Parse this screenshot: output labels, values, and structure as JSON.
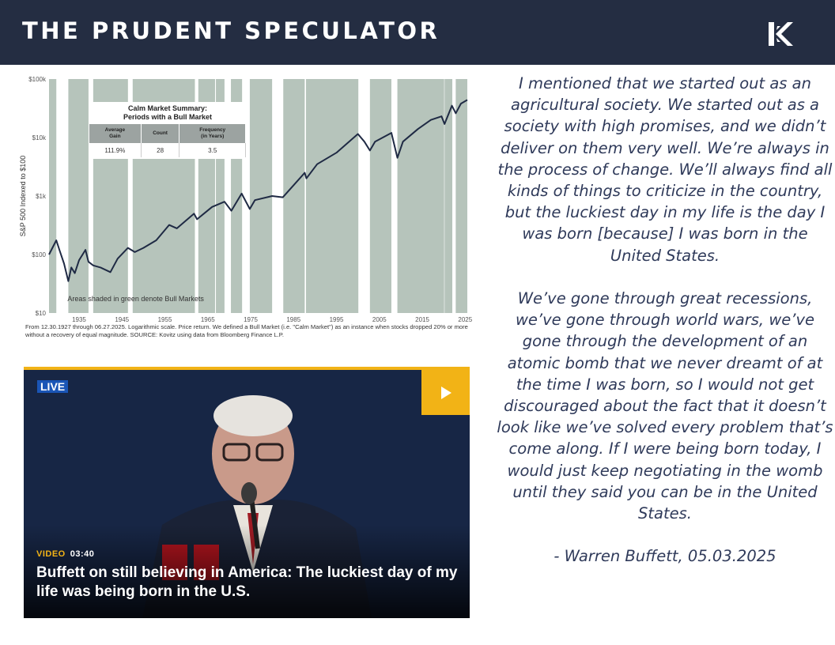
{
  "header": {
    "brand": "THE PRUDENT SPECULATOR",
    "logo_icon": "kovitz-k-logo-icon"
  },
  "chart_data": {
    "type": "line",
    "ylabel": "S&P 500 Indexed to $100",
    "yscale": "log",
    "ylim": [
      10,
      100000
    ],
    "ytick_labels": [
      "$10",
      "$100",
      "$1k",
      "$10k",
      "$100k"
    ],
    "ytick_values": [
      10,
      100,
      1000,
      10000,
      100000
    ],
    "xlim": [
      1928,
      2025.5
    ],
    "xtick_labels": [
      "1935",
      "1945",
      "1955",
      "1965",
      "1975",
      "1985",
      "1995",
      "2005",
      "2015",
      "2025"
    ],
    "xtick_values": [
      1935,
      1945,
      1955,
      1965,
      1975,
      1985,
      1995,
      2005,
      2015,
      2025
    ],
    "series": [
      {
        "x": [
          1928,
          1929.7,
          1930.5,
          1931.5,
          1932.5,
          1933.2,
          1934,
          1935,
          1936.5,
          1937.2,
          1938.3,
          1940,
          1942.3,
          1944,
          1946.4,
          1948,
          1950,
          1953,
          1956,
          1957.8,
          1961.8,
          1962.5,
          1966,
          1968.9,
          1970.5,
          1972.9,
          1974.8,
          1976,
          1980,
          1982.5,
          1987.6,
          1988,
          1990.5,
          1995,
          2000,
          2001.5,
          2002.8,
          2004,
          2007.8,
          2009.2,
          2010.5,
          2014,
          2017,
          2019.5,
          2020.2,
          2021.9,
          2022.8,
          2024,
          2025.5
        ],
        "values": [
          100,
          175,
          115,
          70,
          35,
          60,
          48,
          80,
          120,
          75,
          65,
          60,
          50,
          85,
          130,
          110,
          130,
          175,
          320,
          280,
          500,
          400,
          650,
          800,
          560,
          1100,
          600,
          850,
          1000,
          950,
          2500,
          2000,
          3500,
          5500,
          11500,
          8500,
          6000,
          8500,
          12000,
          4500,
          8500,
          14000,
          20000,
          23000,
          17000,
          35000,
          26000,
          38000,
          44000
        ]
      }
    ],
    "bull_markets": [
      [
        1928,
        1929.7
      ],
      [
        1932.5,
        1937.2
      ],
      [
        1938.3,
        1946.4
      ],
      [
        1947.5,
        1962.0
      ],
      [
        1962.8,
        1966.7
      ],
      [
        1966.9,
        1968.9
      ],
      [
        1970.4,
        1973.0
      ],
      [
        1974.8,
        1980.0
      ],
      [
        1982.6,
        1987.6
      ],
      [
        1987.9,
        2000.1
      ],
      [
        2002.8,
        2007.8
      ],
      [
        2009.2,
        2020.1
      ],
      [
        2020.2,
        2022.0
      ],
      [
        2022.8,
        2025.5
      ]
    ],
    "annotation": "Areas shaded in green denote Bull Markets",
    "summary_table": {
      "title_line1": "Calm Market Summary:",
      "title_line2": "Periods with a Bull Market",
      "headers": [
        [
          "Average",
          "Gain"
        ],
        [
          "Count"
        ],
        [
          "Frequency",
          "(in Years)"
        ]
      ],
      "row": [
        "111.9%",
        "28",
        "3.5"
      ]
    },
    "source_note": "From 12.30.1927 through 06.27.2025. Logarithmic scale. Price return. We defined a Bull Market (i.e. \"Calm Market\") as an instance when stocks dropped 20% or more without a recovery of equal magnitude. SOURCE: Kovitz using data from Bloomberg Finance L.P.",
    "colors": {
      "bull_shade": "#b6c4bb",
      "line": "#1f2a44"
    }
  },
  "video": {
    "live_label": "LIVE",
    "play_icon": "play-icon",
    "kind_label": "VIDEO",
    "duration": "03:40",
    "title": "Buffett on still believing in America: The luckiest day of my life was being born in the U.S.",
    "accent_color": "#f2b316"
  },
  "quote": {
    "para1": "I mentioned that we started out as an agricultural society. We started out as a society with high promises, and we didn’t deliver on them very well. We’re always in the process of change. We’ll always find all kinds of things to criticize in the country, but the luckiest day in my life is the day I was born [because] I was born in the United States.",
    "para2": "We’ve gone through great recessions, we’ve gone through world wars, we’ve gone through the development of an atomic bomb that we never dreamt of at the time I was born, so I would not get discouraged about the fact that it doesn’t look like we’ve solved every problem that’s come along. If I were being born today, I would just keep negotiating in the womb until they said you can be in the United States.",
    "attribution": "- Warren Buffett, 05.03.2025"
  }
}
